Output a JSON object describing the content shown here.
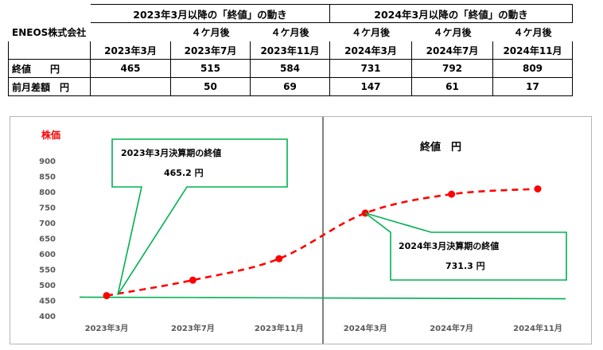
{
  "table": {
    "company": "ENEOS株式会社",
    "group_headers": [
      "2023年3月以降の「終値」の動き",
      "2024年3月以降の「終値」の動き"
    ],
    "after_labels": [
      "４ケ月後",
      "４ケ月後",
      "４ケ月後",
      "４ケ月後",
      "４ケ月後"
    ],
    "months": [
      "2023年3月",
      "2023年7月",
      "2023年11月",
      "2024年3月",
      "2024年7月",
      "2024年11月"
    ],
    "rows": [
      {
        "label": "終値　　円",
        "values": [
          "465",
          "515",
          "584",
          "731",
          "792",
          "809"
        ]
      },
      {
        "label": "前月差額　円",
        "values": [
          "",
          "50",
          "69",
          "147",
          "61",
          "17"
        ]
      }
    ]
  },
  "chart_data": {
    "type": "line",
    "categories": [
      "2023年3月",
      "2023年7月",
      "2023年11月",
      "2024年3月",
      "2024年7月",
      "2024年11月"
    ],
    "series": [
      {
        "values": [
          465,
          515,
          584,
          731,
          792,
          809
        ],
        "color": "#ff0000",
        "style": "dashed",
        "markers": true
      },
      {
        "values": [
          460,
          459,
          458,
          457,
          456,
          455
        ],
        "color": "#00b050",
        "style": "solid",
        "markers": false
      }
    ],
    "ylabel": "株価",
    "ylim": [
      400,
      900
    ],
    "yticks": [
      900,
      850,
      800,
      750,
      700,
      650,
      600,
      550,
      500,
      450,
      400
    ],
    "divider_between": [
      "2023年11月",
      "2024年3月"
    ],
    "right_title": "終値　円",
    "callouts": [
      {
        "line1": "2023年3月決算期の終値",
        "line2": "465.2 円",
        "target": "2023年3月"
      },
      {
        "line1": "2024年3月決算期の終値",
        "line2": "731.3 円",
        "target": "2024年3月"
      }
    ],
    "colors": {
      "line": "#ff0000",
      "baseline": "#00b050",
      "callout_border": "#00b050",
      "ylabel": "#ff0000",
      "axis_text": "#595959"
    }
  }
}
